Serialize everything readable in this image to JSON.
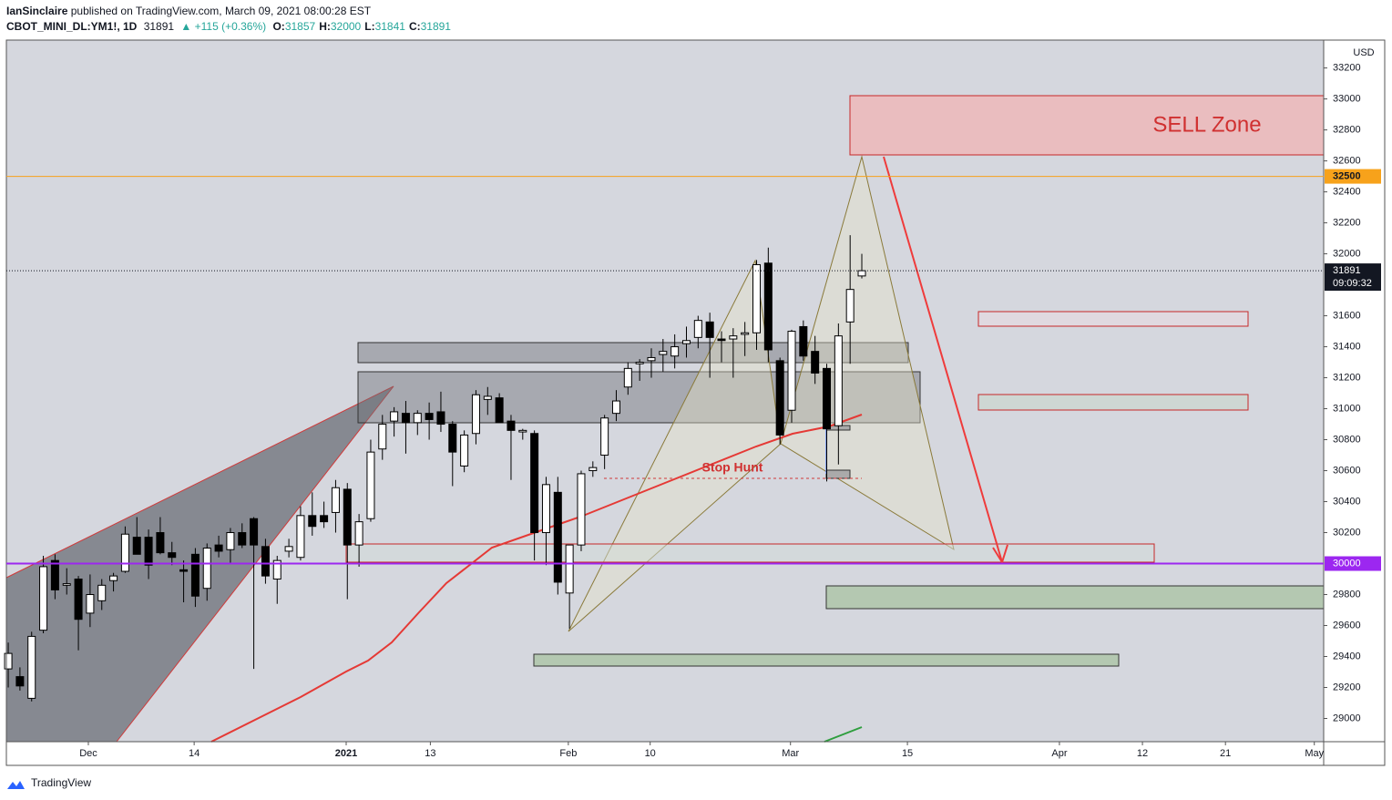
{
  "header": {
    "publisher": "IanSinclaire",
    "published": "published on TradingView.com, March 09, 2021 08:00:28 EST"
  },
  "legend": {
    "symbol": "CBOT_MINI_DL:YM1!, 1D",
    "last": 31891,
    "change": "▲ +115 (+0.36%)",
    "ohlc": [
      {
        "label": "O:",
        "value": 31857
      },
      {
        "label": "H:",
        "value": 32000
      },
      {
        "label": "L:",
        "value": 31841
      },
      {
        "label": "C:",
        "value": 31891
      }
    ]
  },
  "chart_data": {
    "type": "candlestick",
    "unit": "USD",
    "x": [
      0,
      1,
      2,
      3,
      4,
      5,
      6,
      7,
      8,
      9,
      10,
      11,
      12,
      13,
      14,
      15,
      16,
      17,
      18,
      19,
      20,
      21,
      22,
      23,
      24,
      25,
      26,
      27,
      28,
      29,
      30,
      31,
      32,
      33,
      34,
      35,
      36,
      37,
      38,
      39,
      40,
      41,
      42,
      43,
      44,
      45,
      46,
      47,
      48,
      49,
      50,
      51,
      52,
      53,
      54,
      55,
      56,
      57,
      58,
      59,
      60,
      61,
      62,
      63,
      64,
      65,
      66,
      67,
      68,
      69,
      70,
      71,
      72,
      73
    ],
    "open": [
      29320,
      29270,
      29130,
      29570,
      30020,
      29860,
      29900,
      29680,
      29760,
      29890,
      29950,
      30170,
      30170,
      30200,
      30070,
      29960,
      30060,
      29840,
      30120,
      30090,
      30200,
      30290,
      30110,
      29900,
      30080,
      30040,
      30310,
      30310,
      30330,
      30480,
      30120,
      30290,
      30740,
      30920,
      30970,
      30910,
      30970,
      30980,
      30900,
      30630,
      30840,
      31060,
      31070,
      30920,
      30850,
      30840,
      30200,
      30460,
      29810,
      30120,
      30600,
      30700,
      30970,
      31140,
      31290,
      31310,
      31350,
      31340,
      31420,
      31460,
      31560,
      31450,
      31450,
      31480,
      31490,
      31940,
      31310,
      30990,
      31530,
      31370,
      31260,
      30890,
      31560,
      31857
    ],
    "high": [
      29490,
      29330,
      29560,
      30050,
      30060,
      29970,
      29920,
      29930,
      29900,
      29940,
      30240,
      30300,
      30220,
      30300,
      30140,
      30020,
      30100,
      30130,
      30180,
      30230,
      30260,
      30300,
      30160,
      30050,
      30160,
      30370,
      30460,
      30400,
      30540,
      30520,
      30320,
      30800,
      30960,
      31010,
      31050,
      30990,
      31040,
      31110,
      30920,
      30860,
      31120,
      31140,
      31100,
      30960,
      30870,
      30860,
      30560,
      30560,
      30120,
      30600,
      30660,
      30960,
      31120,
      31300,
      31320,
      31390,
      31450,
      31480,
      31530,
      31600,
      31620,
      31500,
      31520,
      31560,
      31960,
      32040,
      31330,
      31510,
      31570,
      31470,
      31290,
      31550,
      32120,
      32000
    ],
    "low": [
      29200,
      29180,
      29110,
      29550,
      29770,
      29800,
      29440,
      29590,
      29700,
      29820,
      29940,
      30060,
      29900,
      30060,
      29990,
      29750,
      29720,
      29760,
      30040,
      30000,
      30100,
      29320,
      29870,
      29740,
      30040,
      30020,
      30180,
      30230,
      30200,
      29770,
      29980,
      30270,
      30670,
      30820,
      30710,
      30830,
      30800,
      30850,
      30500,
      30590,
      30770,
      30960,
      30950,
      30540,
      30800,
      30020,
      29990,
      29800,
      29580,
      30080,
      30560,
      30610,
      30920,
      31090,
      31180,
      31200,
      31240,
      31260,
      31330,
      31390,
      31200,
      31300,
      31200,
      31340,
      31380,
      31300,
      30770,
      30910,
      31310,
      31160,
      30530,
      30640,
      31290,
      31841
    ],
    "close": [
      29420,
      29210,
      29530,
      29980,
      29830,
      29870,
      29640,
      29800,
      29860,
      29920,
      30190,
      30060,
      29990,
      30070,
      30040,
      29950,
      29790,
      30100,
      30080,
      30200,
      30120,
      30120,
      29920,
      30020,
      30110,
      30310,
      30240,
      30270,
      30490,
      30120,
      30270,
      30720,
      30900,
      30980,
      30910,
      30970,
      30930,
      30900,
      30720,
      30830,
      31090,
      31080,
      30910,
      30860,
      30860,
      30200,
      30510,
      29880,
      30120,
      30580,
      30620,
      30940,
      31050,
      31260,
      31300,
      31330,
      31370,
      31400,
      31440,
      31570,
      31460,
      31440,
      31470,
      31490,
      31930,
      31380,
      30830,
      31500,
      31340,
      31230,
      30870,
      31470,
      31770,
      31891
    ],
    "up_color": "#ffffff",
    "down_color": "#000000",
    "xlim": [
      -0.16,
      112.5
    ],
    "xticks": [
      {
        "value": 6.85,
        "label": "Dec"
      },
      {
        "value": 15.9,
        "label": "14"
      },
      {
        "value": 28.9,
        "label": "2021"
      },
      {
        "value": 36.1,
        "label": "13"
      },
      {
        "value": 47.9,
        "label": "Feb"
      },
      {
        "value": 54.9,
        "label": "10"
      },
      {
        "value": 66.9,
        "label": "Mar"
      },
      {
        "value": 76.9,
        "label": "15"
      },
      {
        "value": 89.9,
        "label": "Apr"
      },
      {
        "value": 97.0,
        "label": "12"
      },
      {
        "value": 104.1,
        "label": "21"
      },
      {
        "value": 111.7,
        "label": "May"
      }
    ],
    "ylim": [
      28850,
      33380
    ],
    "yticks": [
      29000,
      29200,
      29400,
      29600,
      29800,
      30200,
      30400,
      30600,
      30800,
      31000,
      31200,
      31400,
      31600,
      32000,
      32200,
      32400,
      32600,
      32800,
      33000,
      33200
    ],
    "price_labels": [
      {
        "value": 32500,
        "color": "#f7a21b"
      },
      {
        "value": 30000,
        "color": "#9c27f0"
      },
      {
        "value": 31891,
        "color": "#131722"
      }
    ],
    "countdown": "09:09:32",
    "annotations": [
      "SELL Zone",
      "Stop Hunt"
    ]
  },
  "footer": "TradingView"
}
